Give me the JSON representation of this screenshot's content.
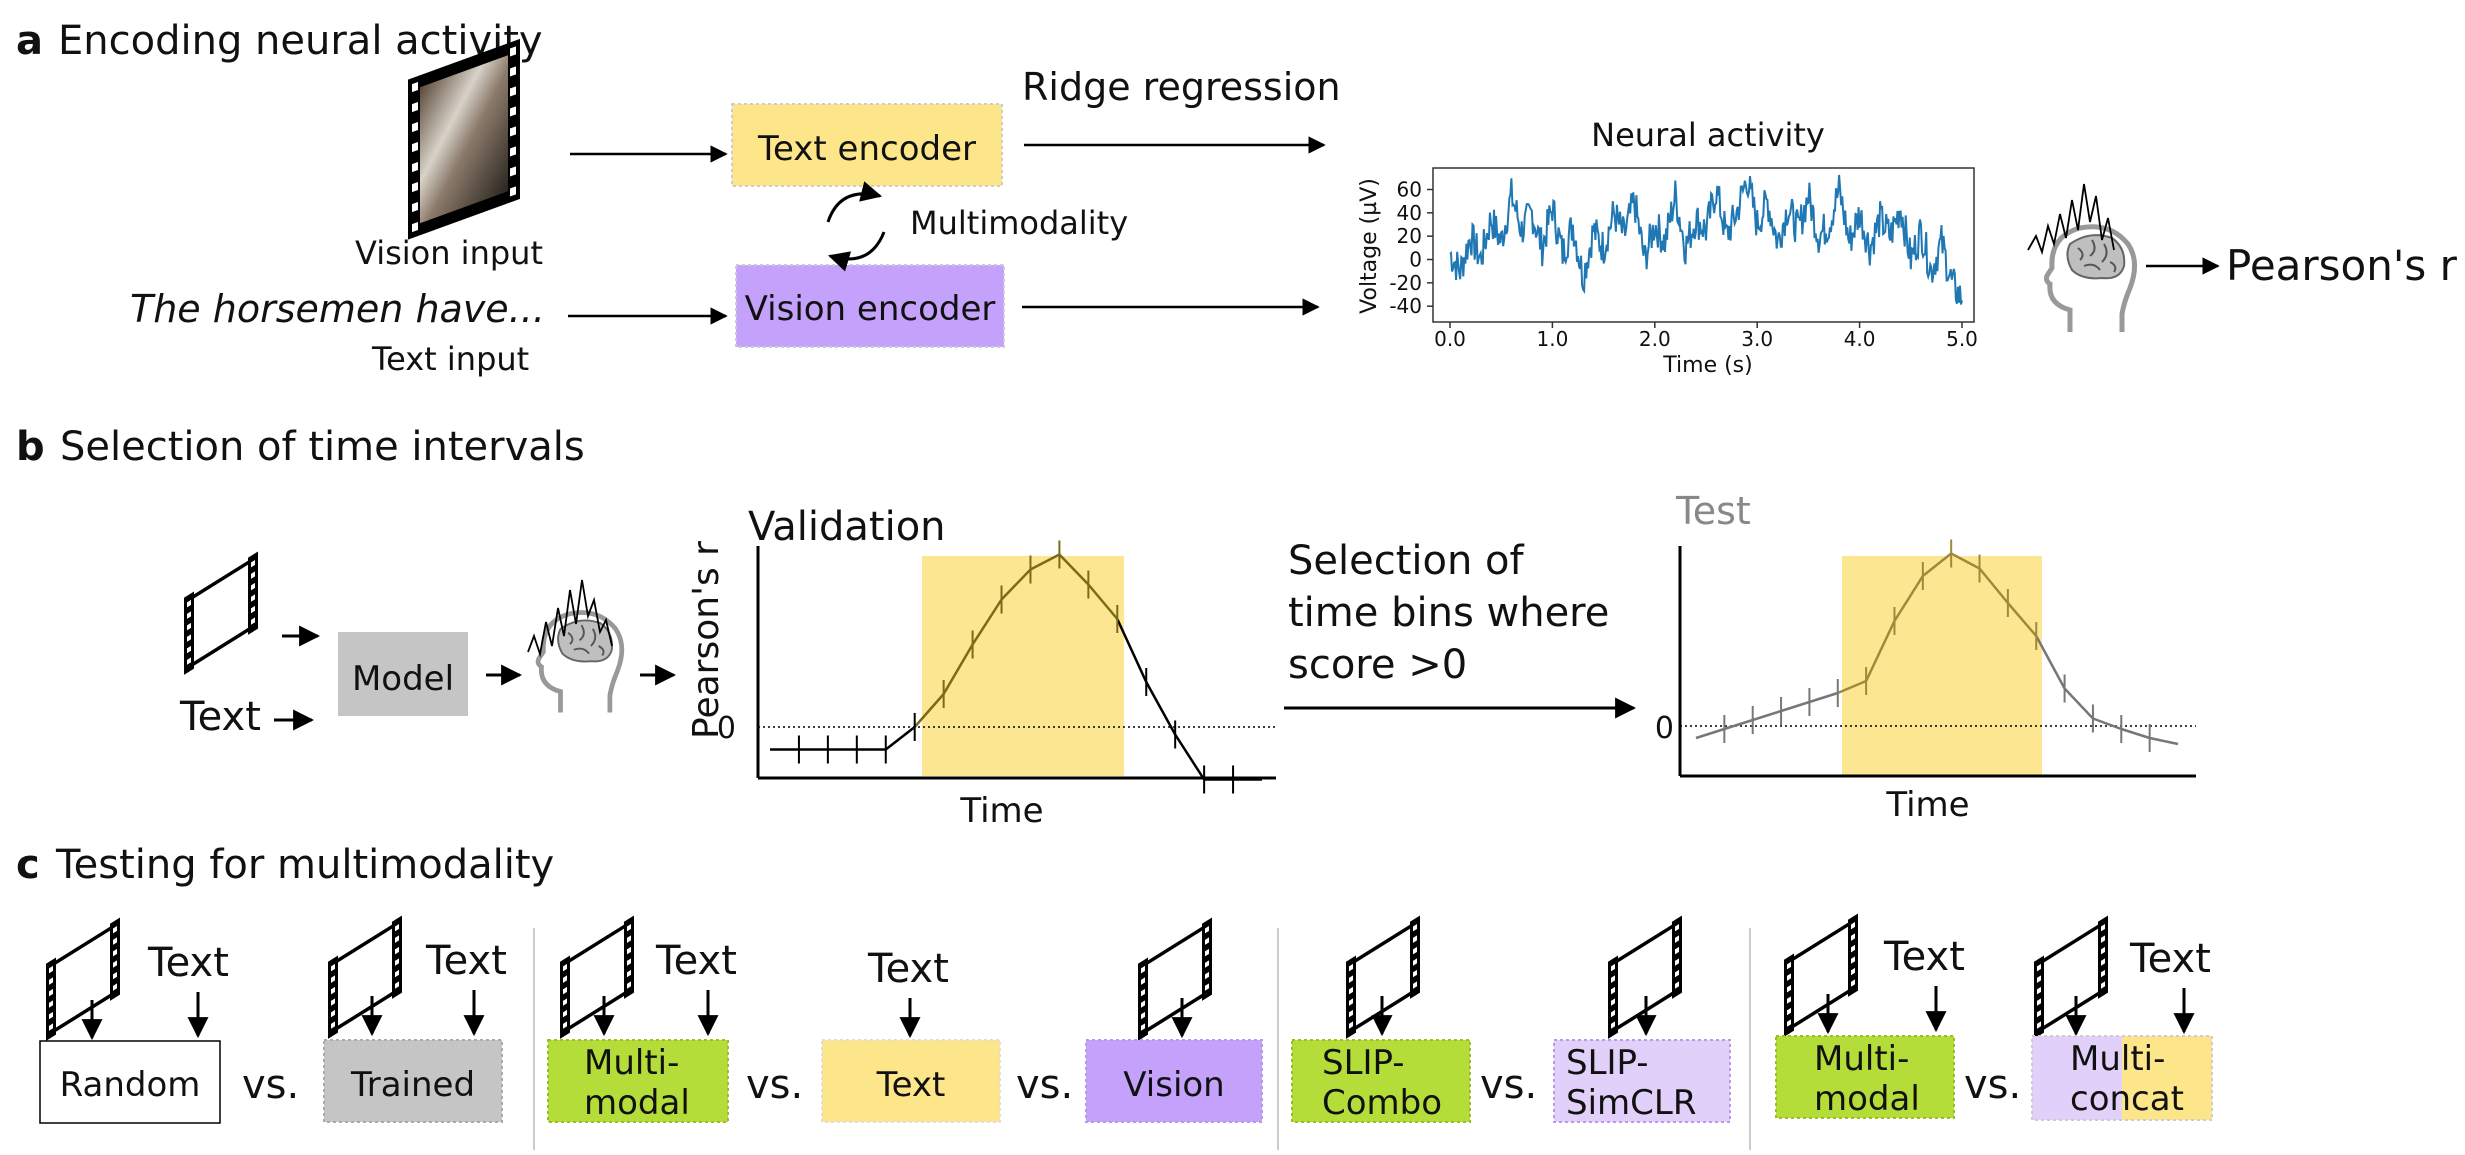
{
  "panel_a": {
    "letter": "a",
    "title": "Encoding neural activity",
    "vision_input_label": "Vision input",
    "text_input_sentence": "The horsemen have...",
    "text_input_label": "Text input",
    "text_encoder": "Text encoder",
    "vision_encoder": "Vision encoder",
    "multimodality": "Multimodality",
    "ridge": "Ridge regression",
    "output": "Pearson's r",
    "chart_title": "Neural activity",
    "chart_xlabel": "Time (s)",
    "chart_ylabel": "Voltage (µV)",
    "chart_xticks": [
      "0.0",
      "1.0",
      "2.0",
      "3.0",
      "4.0",
      "5.0"
    ],
    "chart_yticks": [
      "60",
      "40",
      "20",
      "0",
      "-20",
      "-40"
    ]
  },
  "panel_b": {
    "letter": "b",
    "title": "Selection of time intervals",
    "text_label": "Text",
    "model_label": "Model",
    "validation_title": "Validation",
    "test_title": "Test",
    "ylabel": "Pearson's r",
    "xlabel": "Time",
    "zero": "0",
    "selection_line1": "Selection of",
    "selection_line2": "time bins where",
    "selection_line3": "score >0"
  },
  "panel_c": {
    "letter": "c",
    "title": "Testing for multimodality",
    "vs": "vs.",
    "text_label": "Text",
    "random": "Random",
    "trained": "Trained",
    "multimodal_l1": "Multi-",
    "multimodal_l2": "modal",
    "text_box": "Text",
    "vision_box": "Vision",
    "slip_combo_l1": "SLIP-",
    "slip_combo_l2": "Combo",
    "slip_simclr_l1": "SLIP-",
    "slip_simclr_l2": "SimCLR",
    "multiconcat_l1": "Multi-",
    "multiconcat_l2": "concat"
  },
  "colors": {
    "yellow": "#fde68a",
    "purple": "#c4a1fa",
    "green": "#b5dd3a",
    "gray": "#c5c5c5",
    "light_purple": "#e0d0fa",
    "highlight": "#fbe27f",
    "signal": "#1f77b4"
  },
  "chart_data": [
    {
      "type": "line",
      "title": "Neural activity",
      "xlabel": "Time (s)",
      "ylabel": "Voltage (µV)",
      "xlim": [
        0,
        5
      ],
      "ylim": [
        -45,
        75
      ],
      "series": [
        {
          "x": [
            0.0,
            0.1,
            0.2,
            0.3,
            0.4,
            0.5,
            0.6,
            0.7,
            0.8,
            0.9,
            1.0,
            1.1,
            1.2,
            1.3,
            1.4,
            1.5,
            1.6,
            1.7,
            1.8,
            1.9,
            2.0,
            2.1,
            2.2,
            2.3,
            2.4,
            2.5,
            2.6,
            2.7,
            2.8,
            2.9,
            3.0,
            3.1,
            3.2,
            3.3,
            3.4,
            3.5,
            3.6,
            3.7,
            3.8,
            3.9,
            4.0,
            4.1,
            4.2,
            4.3,
            4.4,
            4.5,
            4.6,
            4.7,
            4.8,
            4.9,
            5.0
          ],
          "values": [
            5,
            -10,
            20,
            0,
            35,
            15,
            55,
            25,
            40,
            10,
            45,
            5,
            30,
            -15,
            25,
            10,
            40,
            20,
            50,
            0,
            30,
            15,
            55,
            10,
            35,
            25,
            60,
            20,
            40,
            70,
            30,
            50,
            15,
            45,
            25,
            55,
            20,
            30,
            60,
            15,
            40,
            10,
            35,
            20,
            45,
            0,
            25,
            -10,
            15,
            -20,
            -35
          ]
        }
      ]
    },
    {
      "type": "line",
      "title": "Validation",
      "xlabel": "Time",
      "ylabel": "Pearson's r",
      "yticks": [
        "0"
      ],
      "series": [
        {
          "x": [
            0,
            1,
            2,
            3,
            4,
            5,
            6,
            7,
            8,
            9,
            10,
            11,
            12,
            13,
            14,
            15,
            16,
            17
          ],
          "values": [
            -0.15,
            -0.15,
            -0.15,
            -0.15,
            -0.15,
            0.0,
            0.22,
            0.55,
            0.85,
            1.05,
            1.15,
            0.95,
            0.72,
            0.3,
            -0.05,
            -0.35,
            -0.35,
            -0.35
          ]
        }
      ]
    },
    {
      "type": "line",
      "title": "Test",
      "xlabel": "Time",
      "yticks": [
        "0"
      ],
      "series": [
        {
          "x": [
            0,
            1,
            2,
            3,
            4,
            5,
            6,
            7,
            8,
            9,
            10,
            11,
            12,
            13,
            14,
            15,
            16,
            17
          ],
          "values": [
            -0.08,
            -0.02,
            0.04,
            0.1,
            0.16,
            0.22,
            0.3,
            0.7,
            1.0,
            1.15,
            1.05,
            0.82,
            0.6,
            0.25,
            0.05,
            -0.02,
            -0.08,
            -0.12
          ]
        }
      ]
    }
  ]
}
